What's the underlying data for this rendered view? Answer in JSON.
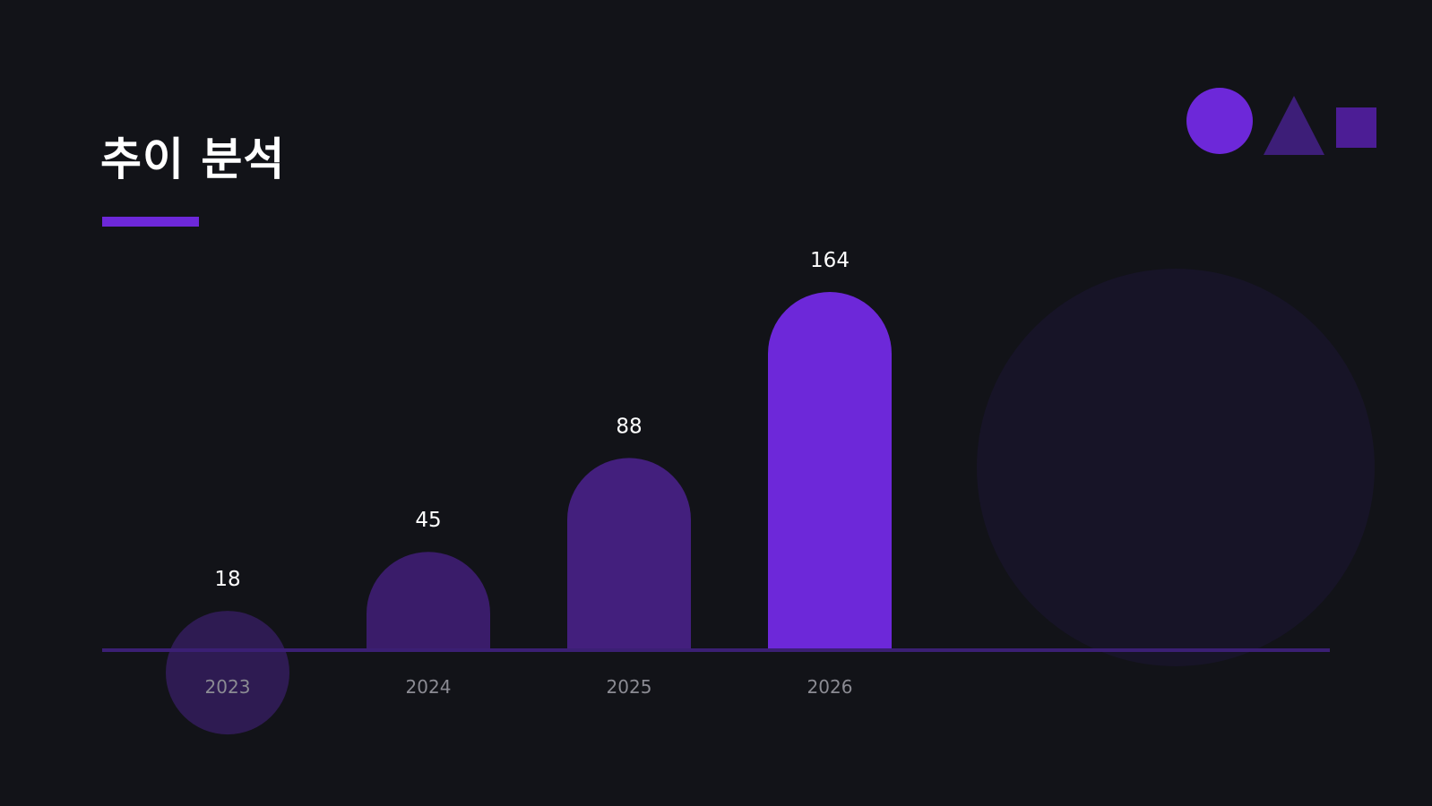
{
  "title": "추이 분석",
  "colors": {
    "background": "#121318",
    "accent": "#6d28d9",
    "axis": "#3b1f74",
    "bar_2023": "#2e1b52",
    "bar_2024": "#3a1c6a",
    "bar_2025": "#431f7d",
    "bar_2026": "#6d28d9",
    "value_label": "#ffffff",
    "tick_label": "#8b8b93"
  },
  "decorations": [
    "circle-shape",
    "triangle-shape",
    "square-shape",
    "large-circle-shape"
  ],
  "chart_data": {
    "type": "bar",
    "title": "추이 분석",
    "categories": [
      "2023",
      "2024",
      "2025",
      "2026"
    ],
    "values": [
      18,
      45,
      88,
      164
    ],
    "value_labels": [
      "18",
      "45",
      "88",
      "164"
    ],
    "xlabel": "",
    "ylabel": "",
    "ylim": [
      0,
      164
    ],
    "grid": false,
    "legend": "none"
  }
}
